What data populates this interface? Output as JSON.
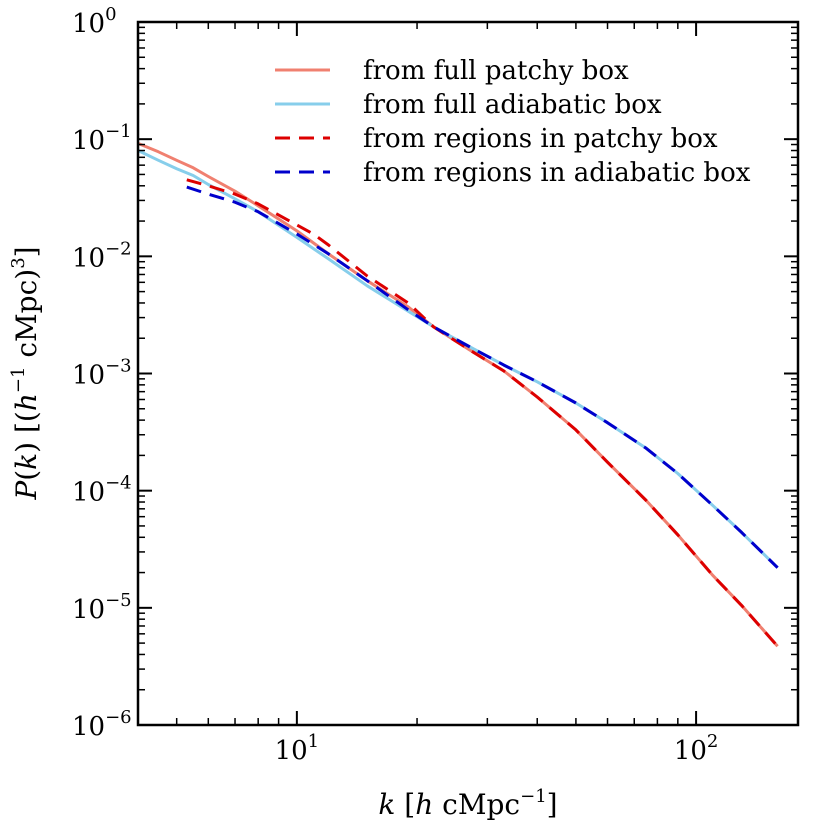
{
  "chart_data": {
    "type": "line",
    "title": "",
    "xscale": "log",
    "yscale": "log",
    "xlim": [
      4.0,
      180
    ],
    "ylim": [
      1e-06,
      1
    ],
    "xlabel": {
      "k": "k",
      "rest": "[h cMpc⁻¹]",
      "sym": "k",
      "open": " [",
      "h": "h",
      "unit": " cMpc",
      "exp": "−1",
      "close": "]"
    },
    "ylabel": {
      "P": "P",
      "paren_open": "(",
      "k": "k",
      "paren_close": ")",
      "open": " [(",
      "h": "h",
      "exp1": "−1",
      "unit": " cMpc)",
      "exp3": "3",
      "close": "]"
    },
    "x_ticks": [
      {
        "value": 10,
        "base": "10",
        "exp": "1"
      },
      {
        "value": 100,
        "base": "10",
        "exp": "2"
      }
    ],
    "y_ticks": [
      {
        "value": 1,
        "base": "10",
        "exp": "0"
      },
      {
        "value": 0.1,
        "base": "10",
        "exp": "−1"
      },
      {
        "value": 0.01,
        "base": "10",
        "exp": "−2"
      },
      {
        "value": 0.001,
        "base": "10",
        "exp": "−3"
      },
      {
        "value": 0.0001,
        "base": "10",
        "exp": "−4"
      },
      {
        "value": 1e-05,
        "base": "10",
        "exp": "−5"
      },
      {
        "value": 1e-06,
        "base": "10",
        "exp": "−6"
      }
    ],
    "legend_position": "top-right",
    "series": [
      {
        "name": "from full patchy box",
        "color": "#f08070",
        "style": "solid",
        "x": [
          4.0,
          4.5,
          5.0,
          5.5,
          6.0,
          7.0,
          8.0,
          10.0,
          12.0,
          15.0,
          19.0,
          22.0,
          27.0,
          33.0,
          40.0,
          50.0,
          60.0,
          75.0,
          90.0,
          110.0,
          130.0,
          160.0
        ],
        "y": [
          0.092,
          0.078,
          0.066,
          0.057,
          0.048,
          0.036,
          0.027,
          0.0165,
          0.0105,
          0.0062,
          0.0037,
          0.0025,
          0.0016,
          0.00105,
          0.00063,
          0.00033,
          0.000175,
          8.25e-05,
          4.2e-05,
          1.9e-05,
          1.05e-05,
          4.7e-06
        ]
      },
      {
        "name": "from full adiabatic box",
        "color": "#87ceeb",
        "style": "solid",
        "x": [
          4.0,
          4.5,
          5.0,
          5.5,
          6.0,
          7.0,
          8.0,
          10.0,
          12.0,
          15.0,
          19.0,
          22.0,
          27.0,
          33.0,
          40.0,
          50.0,
          60.0,
          75.0,
          90.0,
          110.0,
          130.0,
          160.0
        ],
        "y": [
          0.08,
          0.066,
          0.056,
          0.049,
          0.041,
          0.031,
          0.024,
          0.0145,
          0.0095,
          0.0056,
          0.0034,
          0.0025,
          0.0017,
          0.00118,
          0.00085,
          0.00056,
          0.00038,
          0.00023,
          0.00014,
          7.5e-05,
          4.4e-05,
          2.2e-05
        ]
      },
      {
        "name": "from regions in patchy box",
        "color": "#dd0000",
        "style": "dashed",
        "x": [
          5.3,
          6.0,
          7.0,
          8.0,
          10.0,
          11.0,
          12.0,
          15.0,
          19.0,
          20.0,
          22.0,
          27.0,
          33.0,
          40.0,
          50.0,
          60.0,
          75.0,
          90.0,
          110.0,
          130.0,
          160.0
        ],
        "y": [
          0.045,
          0.04,
          0.034,
          0.028,
          0.0185,
          0.0155,
          0.0125,
          0.0068,
          0.004,
          0.0034,
          0.0025,
          0.0016,
          0.00105,
          0.00063,
          0.00033,
          0.000175,
          8.25e-05,
          4.2e-05,
          1.9e-05,
          1.05e-05,
          4.7e-06
        ]
      },
      {
        "name": "from regions in adiabatic box",
        "color": "#0000cc",
        "style": "dashed",
        "x": [
          5.3,
          6.0,
          7.0,
          8.0,
          10.0,
          12.0,
          15.0,
          19.0,
          22.0,
          27.0,
          33.0,
          40.0,
          50.0,
          60.0,
          75.0,
          90.0,
          110.0,
          130.0,
          160.0
        ],
        "y": [
          0.039,
          0.034,
          0.029,
          0.024,
          0.0155,
          0.0105,
          0.0062,
          0.0035,
          0.0025,
          0.0017,
          0.00118,
          0.00085,
          0.00056,
          0.00038,
          0.00023,
          0.00014,
          7.5e-05,
          4.4e-05,
          2.2e-05
        ]
      }
    ]
  }
}
